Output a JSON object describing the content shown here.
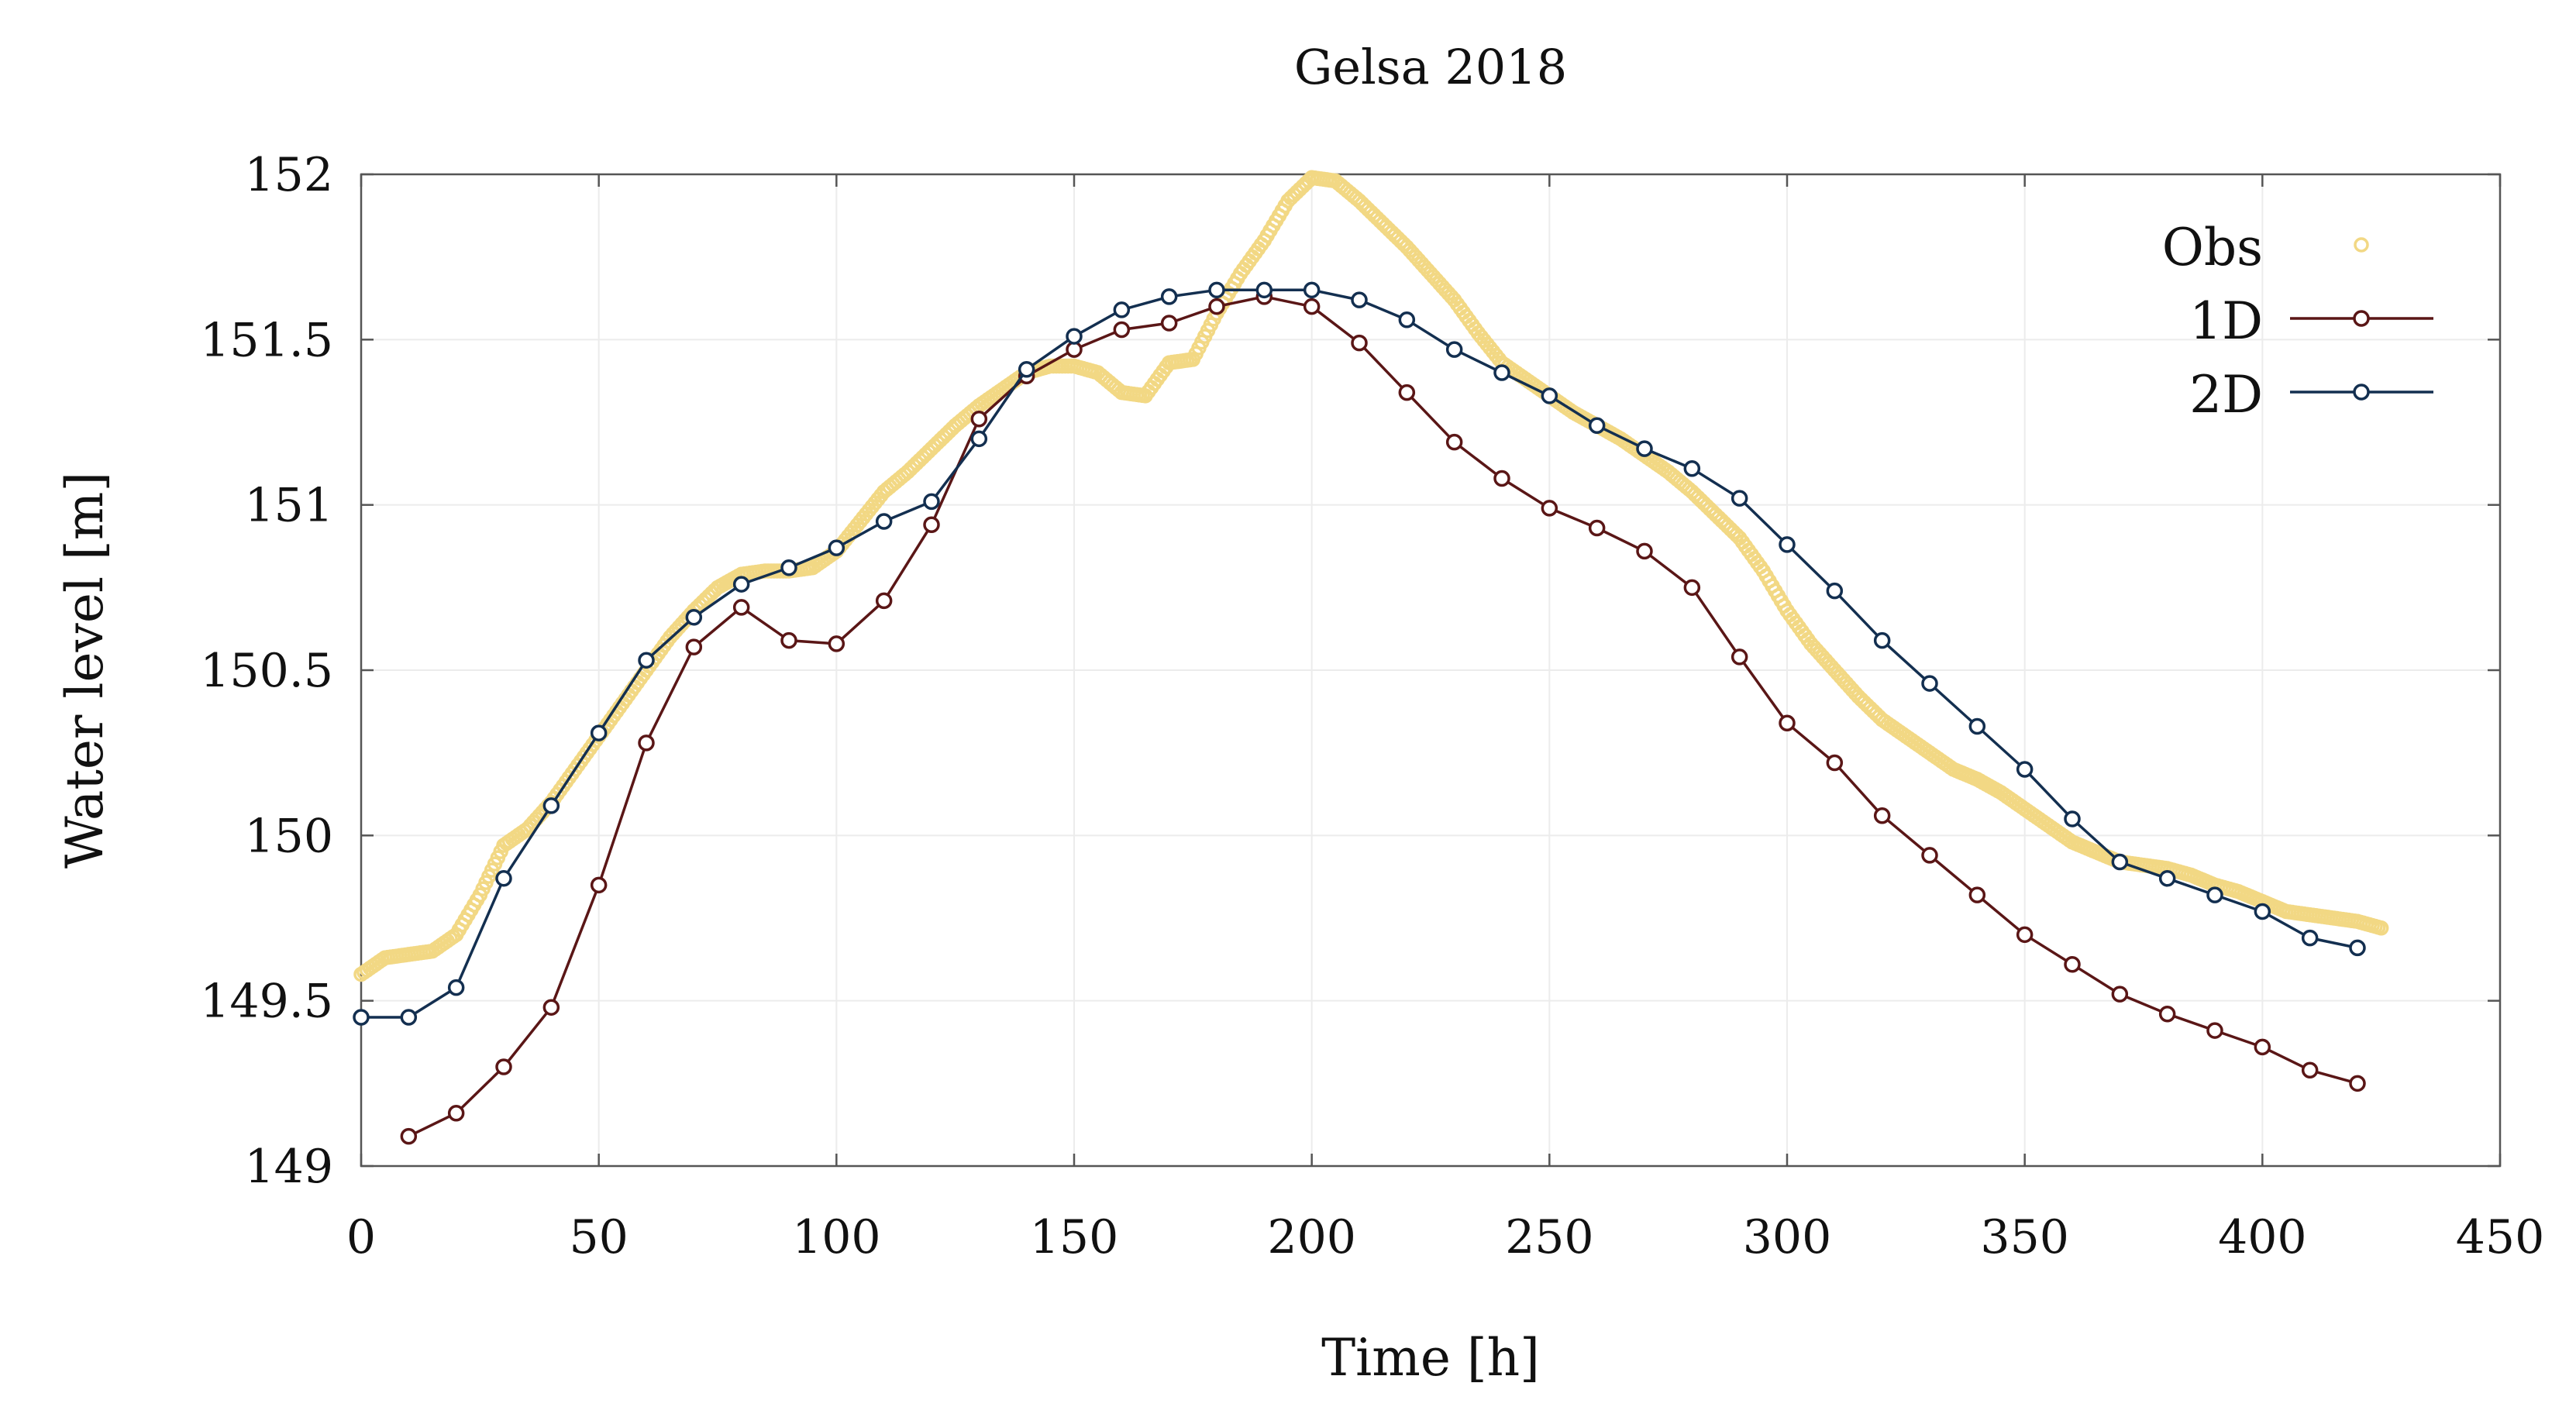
{
  "chart_data": {
    "type": "line",
    "title": "Gelsa 2018",
    "xlabel": "Time [h]",
    "ylabel": "Water level [m]",
    "xlim": [
      0,
      450
    ],
    "ylim": [
      149,
      152
    ],
    "xticks": [
      "0",
      "50",
      "100",
      "150",
      "200",
      "250",
      "300",
      "350",
      "400",
      "450"
    ],
    "yticks": [
      "149",
      "149.5",
      "150",
      "150.5",
      "151",
      "151.5",
      "152"
    ],
    "grid": true,
    "legend_position": "top-right",
    "colors": {
      "obs": "#f2d884",
      "one_d": "#5a1616",
      "two_d": "#132f50"
    },
    "series": [
      {
        "name": "Obs",
        "style": "markers",
        "x": [
          0,
          5,
          10,
          15,
          20,
          25,
          30,
          35,
          40,
          45,
          50,
          55,
          60,
          65,
          70,
          75,
          80,
          85,
          90,
          95,
          100,
          105,
          110,
          115,
          120,
          125,
          130,
          135,
          140,
          145,
          150,
          155,
          160,
          165,
          170,
          175,
          180,
          185,
          190,
          195,
          200,
          205,
          210,
          215,
          220,
          225,
          230,
          235,
          240,
          245,
          250,
          255,
          260,
          265,
          270,
          275,
          280,
          285,
          290,
          295,
          300,
          305,
          310,
          315,
          320,
          325,
          330,
          335,
          340,
          345,
          350,
          355,
          360,
          365,
          370,
          375,
          380,
          385,
          390,
          395,
          400,
          405,
          410,
          415,
          420,
          425
        ],
        "y": [
          149.58,
          149.63,
          149.64,
          149.65,
          149.7,
          149.82,
          149.97,
          150.02,
          150.1,
          150.2,
          150.3,
          150.4,
          150.5,
          150.6,
          150.68,
          150.75,
          150.79,
          150.8,
          150.8,
          150.81,
          150.86,
          150.95,
          151.04,
          151.1,
          151.17,
          151.24,
          151.3,
          151.35,
          151.4,
          151.42,
          151.42,
          151.4,
          151.34,
          151.33,
          151.43,
          151.44,
          151.58,
          151.7,
          151.8,
          151.92,
          151.99,
          151.98,
          151.92,
          151.85,
          151.78,
          151.7,
          151.62,
          151.52,
          151.43,
          151.38,
          151.33,
          151.28,
          151.24,
          151.2,
          151.15,
          151.1,
          151.04,
          150.97,
          150.9,
          150.8,
          150.68,
          150.58,
          150.5,
          150.42,
          150.35,
          150.3,
          150.25,
          150.2,
          150.17,
          150.13,
          150.08,
          150.03,
          149.98,
          149.95,
          149.92,
          149.91,
          149.9,
          149.88,
          149.85,
          149.83,
          149.8,
          149.77,
          149.76,
          149.75,
          149.74,
          149.72
        ]
      },
      {
        "name": "1D",
        "style": "line-markers",
        "x": [
          10,
          20,
          30,
          40,
          50,
          60,
          70,
          80,
          90,
          100,
          110,
          120,
          130,
          140,
          150,
          160,
          170,
          180,
          190,
          200,
          210,
          220,
          230,
          240,
          250,
          260,
          270,
          280,
          290,
          300,
          310,
          320,
          330,
          340,
          350,
          360,
          370,
          380,
          390,
          400,
          410,
          420
        ],
        "y": [
          149.09,
          149.16,
          149.3,
          149.48,
          149.85,
          150.28,
          150.57,
          150.69,
          150.59,
          150.58,
          150.71,
          150.94,
          151.26,
          151.39,
          151.47,
          151.53,
          151.55,
          151.6,
          151.63,
          151.6,
          151.49,
          151.34,
          151.19,
          151.08,
          150.99,
          150.93,
          150.86,
          150.75,
          150.54,
          150.34,
          150.22,
          150.06,
          149.94,
          149.82,
          149.7,
          149.61,
          149.52,
          149.46,
          149.41,
          149.36,
          149.29,
          149.25
        ]
      },
      {
        "name": "2D",
        "style": "line-markers",
        "x": [
          0,
          10,
          20,
          30,
          40,
          50,
          60,
          70,
          80,
          90,
          100,
          110,
          120,
          130,
          140,
          150,
          160,
          170,
          180,
          190,
          200,
          210,
          220,
          230,
          240,
          250,
          260,
          270,
          280,
          290,
          300,
          310,
          320,
          330,
          340,
          350,
          360,
          370,
          380,
          390,
          400,
          410,
          420
        ],
        "y": [
          149.45,
          149.45,
          149.54,
          149.87,
          150.09,
          150.31,
          150.53,
          150.66,
          150.76,
          150.81,
          150.87,
          150.95,
          151.01,
          151.2,
          151.41,
          151.51,
          151.59,
          151.63,
          151.65,
          151.65,
          151.65,
          151.62,
          151.56,
          151.47,
          151.4,
          151.33,
          151.24,
          151.17,
          151.11,
          151.02,
          150.88,
          150.74,
          150.59,
          150.46,
          150.33,
          150.2,
          150.05,
          149.92,
          149.87,
          149.82,
          149.77,
          149.69,
          149.66
        ]
      }
    ]
  }
}
